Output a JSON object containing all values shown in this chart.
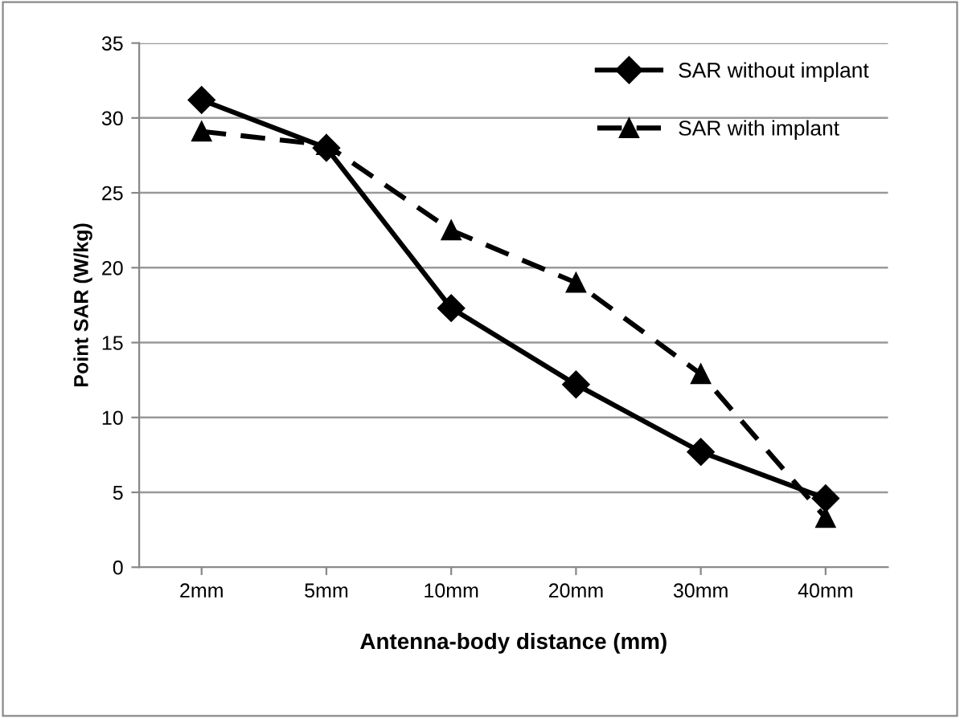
{
  "chart_data": {
    "type": "line",
    "xlabel": "Antenna-body distance (mm)",
    "ylabel": "Point SAR (W/kg)",
    "categories": [
      "2mm",
      "5mm",
      "10mm",
      "20mm",
      "30mm",
      "40mm"
    ],
    "series": [
      {
        "name": "SAR without implant",
        "color": "#000000",
        "values": [
          31.2,
          28.0,
          17.3,
          12.2,
          7.7,
          4.6
        ],
        "marker": "diamond",
        "line_style": "solid"
      },
      {
        "name": "SAR with implant",
        "color": "#000000",
        "values": [
          29.1,
          28.2,
          22.5,
          19.0,
          12.9,
          3.3
        ],
        "marker": "triangle",
        "line_style": "dashed"
      }
    ],
    "ylim": [
      0,
      35
    ],
    "yticks": [
      0,
      5,
      10,
      15,
      20,
      25,
      30,
      35
    ],
    "grid": "y",
    "legend": "top right"
  }
}
